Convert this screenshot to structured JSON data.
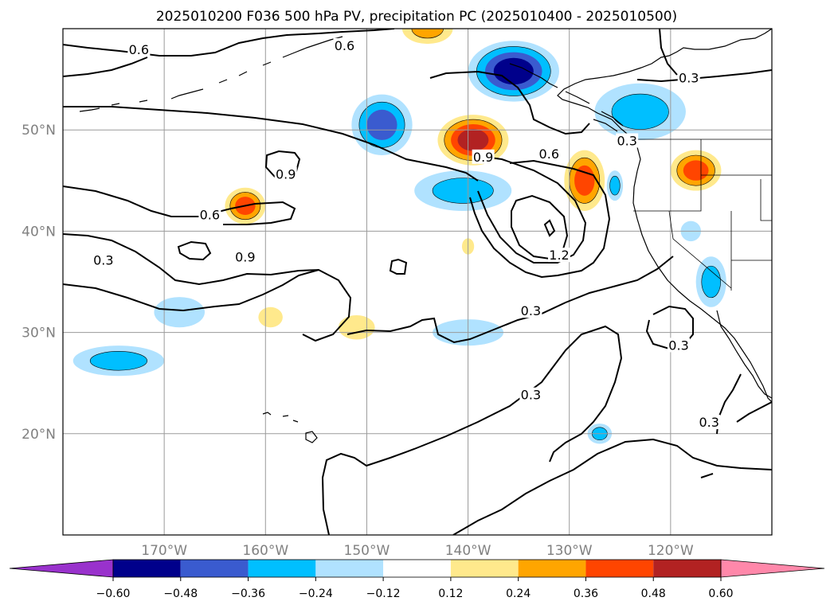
{
  "title": "2025010200 F036 500 hPa PV, precipitation PC (2025010400 - 2025010500)",
  "map": {
    "lon_labels": [
      "170°W",
      "160°W",
      "150°W",
      "140°W",
      "130°W",
      "120°W"
    ],
    "lat_labels": [
      "50°N",
      "40°N",
      "30°N",
      "20°N"
    ],
    "lon_range": [
      180,
      110
    ],
    "lat_range": [
      10,
      60
    ],
    "grid": true
  },
  "contour_labels": [
    {
      "text": "0.6",
      "lon": 172.5,
      "lat": 57.8
    },
    {
      "text": "0.6",
      "lon": 165.5,
      "lat": 41.5
    },
    {
      "text": "0.9",
      "lon": 158.0,
      "lat": 45.5
    },
    {
      "text": "0.9",
      "lon": 162.0,
      "lat": 37.3
    },
    {
      "text": "0.6",
      "lon": 152.2,
      "lat": 58.2
    },
    {
      "text": "0.3",
      "lon": 176.0,
      "lat": 37.0
    },
    {
      "text": "0.9",
      "lon": 138.5,
      "lat": 47.2
    },
    {
      "text": "0.6",
      "lon": 132.0,
      "lat": 47.5
    },
    {
      "text": "0.3",
      "lon": 124.3,
      "lat": 48.8
    },
    {
      "text": "0.3",
      "lon": 118.2,
      "lat": 55.0
    },
    {
      "text": "1.2",
      "lon": 131.0,
      "lat": 37.5
    },
    {
      "text": "0.3",
      "lon": 133.8,
      "lat": 32.0
    },
    {
      "text": "0.3",
      "lon": 119.2,
      "lat": 28.6
    },
    {
      "text": "0.3",
      "lon": 133.8,
      "lat": 23.7
    },
    {
      "text": "0.3",
      "lon": 116.2,
      "lat": 21.0
    }
  ],
  "colorbar": {
    "colors": [
      "#9932cc",
      "#00008b",
      "#3a5bcf",
      "#00bfff",
      "#b0e2ff",
      "#ffffff",
      "#ffe98c",
      "#ffa500",
      "#ff4500",
      "#b22222",
      "#ff88aa"
    ],
    "labels": [
      "−0.60",
      "−0.48",
      "−0.36",
      "−0.24",
      "−0.12",
      "0.12",
      "0.24",
      "0.36",
      "0.48",
      "0.60"
    ]
  },
  "precip_blobs": [
    {
      "lon": 148.5,
      "lat": 50.5,
      "rlon": 3.0,
      "rlat": 3.0,
      "sign": "neg",
      "level": 3
    },
    {
      "lon": 135.5,
      "lat": 55.8,
      "rlon": 4.5,
      "rlat": 3.0,
      "sign": "neg",
      "level": 4
    },
    {
      "lon": 123.0,
      "lat": 51.8,
      "rlon": 4.5,
      "rlat": 2.8,
      "sign": "neg",
      "level": 2
    },
    {
      "lon": 140.5,
      "lat": 44.0,
      "rlon": 4.8,
      "rlat": 2.0,
      "sign": "neg",
      "level": 2
    },
    {
      "lon": 125.5,
      "lat": 44.5,
      "rlon": 0.8,
      "rlat": 1.5,
      "sign": "neg",
      "level": 2
    },
    {
      "lon": 118.0,
      "lat": 40.0,
      "rlon": 1.0,
      "rlat": 1.0,
      "sign": "neg",
      "level": 1
    },
    {
      "lon": 116.0,
      "lat": 35.0,
      "rlon": 1.5,
      "rlat": 2.5,
      "sign": "neg",
      "level": 2
    },
    {
      "lon": 168.5,
      "lat": 32.0,
      "rlon": 2.5,
      "rlat": 1.5,
      "sign": "neg",
      "level": 1
    },
    {
      "lon": 140.0,
      "lat": 30.0,
      "rlon": 3.5,
      "rlat": 1.3,
      "sign": "neg",
      "level": 1
    },
    {
      "lon": 174.5,
      "lat": 27.2,
      "rlon": 4.5,
      "rlat": 1.5,
      "sign": "neg",
      "level": 2
    },
    {
      "lon": 127.0,
      "lat": 20.0,
      "rlon": 1.2,
      "rlat": 1.0,
      "sign": "neg",
      "level": 2
    },
    {
      "lon": 139.5,
      "lat": 49.0,
      "rlon": 3.5,
      "rlat": 2.5,
      "sign": "pos",
      "level": 4
    },
    {
      "lon": 128.5,
      "lat": 45.0,
      "rlon": 2.0,
      "rlat": 3.0,
      "sign": "pos",
      "level": 3
    },
    {
      "lon": 117.5,
      "lat": 46.0,
      "rlon": 2.5,
      "rlat": 2.0,
      "sign": "pos",
      "level": 3
    },
    {
      "lon": 162.0,
      "lat": 42.5,
      "rlon": 2.0,
      "rlat": 1.8,
      "sign": "pos",
      "level": 3
    },
    {
      "lon": 144.0,
      "lat": 60.0,
      "rlon": 2.5,
      "rlat": 1.5,
      "sign": "pos",
      "level": 2
    },
    {
      "lon": 159.5,
      "lat": 31.5,
      "rlon": 1.2,
      "rlat": 1.0,
      "sign": "pos",
      "level": 1
    },
    {
      "lon": 151.0,
      "lat": 30.5,
      "rlon": 1.8,
      "rlat": 1.2,
      "sign": "pos",
      "level": 1
    },
    {
      "lon": 140.0,
      "lat": 38.5,
      "rlon": 0.6,
      "rlat": 0.8,
      "sign": "pos",
      "level": 1
    }
  ]
}
